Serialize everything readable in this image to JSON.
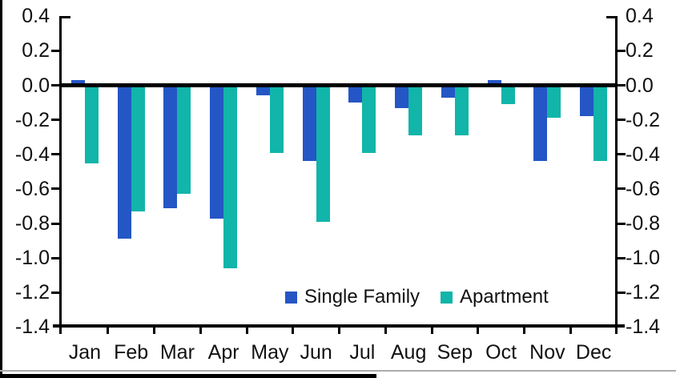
{
  "chart_data": {
    "type": "bar",
    "title": "",
    "xlabel": "",
    "ylabel": "",
    "categories": [
      "Jan",
      "Feb",
      "Mar",
      "Apr",
      "May",
      "Jun",
      "Jul",
      "Aug",
      "Sep",
      "Oct",
      "Nov",
      "Dec"
    ],
    "series": [
      {
        "name": "Single Family",
        "color": "#2456C5",
        "values": [
          0.03,
          -0.89,
          -0.71,
          -0.77,
          -0.06,
          -0.44,
          -0.1,
          -0.13,
          -0.07,
          0.03,
          -0.44,
          -0.18
        ]
      },
      {
        "name": "Apartment",
        "color": "#11B5A9",
        "values": [
          -0.45,
          -0.73,
          -0.63,
          -1.06,
          -0.39,
          -0.79,
          -0.39,
          -0.29,
          -0.29,
          -0.11,
          -0.19,
          -0.44
        ]
      }
    ],
    "ylim": [
      -1.4,
      0.4
    ],
    "ytick_step": 0.2,
    "ytick_labels": [
      "0.4",
      "0.2",
      "0.0",
      "-0.2",
      "-0.4",
      "-0.6",
      "-0.8",
      "-1.0",
      "-1.2",
      "-1.4"
    ],
    "right_axis_mirror": true,
    "grid": false,
    "zero_line": true,
    "legend_position": "inside-bottom",
    "axis_color": "#000000"
  },
  "legend": {
    "items": [
      {
        "label": "Single Family",
        "color": "#2456C5"
      },
      {
        "label": "Apartment",
        "color": "#11B5A9"
      }
    ]
  }
}
